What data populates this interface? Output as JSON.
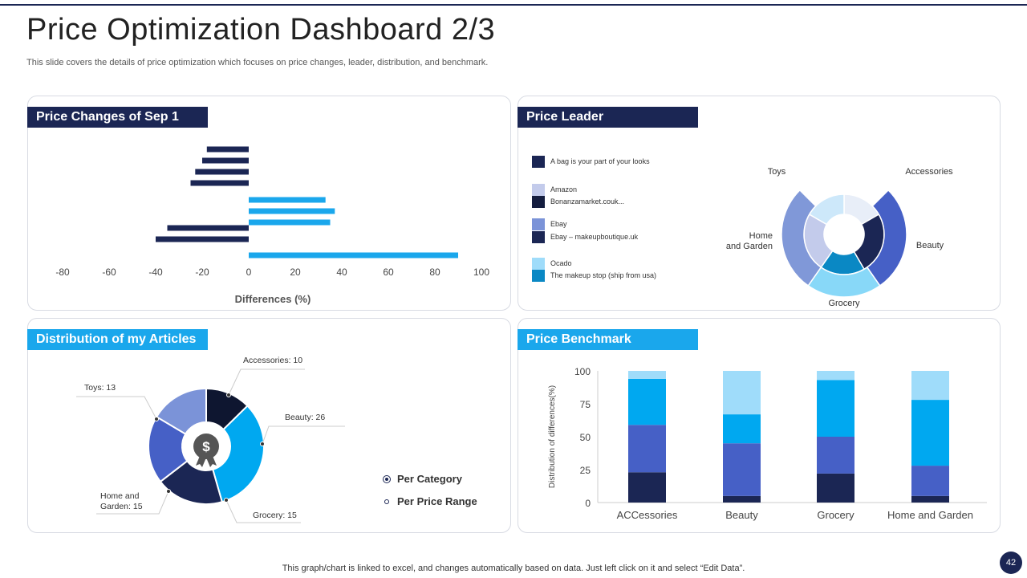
{
  "header": {
    "title": "Price Optimization Dashboard 2/3",
    "subtitle": "This slide covers the details of price optimization which focuses on price changes, leader, distribution, and benchmark."
  },
  "footer": {
    "note": "This graph/chart is linked to excel,  and changes automatically based on data. Just left click on it and select “Edit Data”.",
    "page": "42"
  },
  "panels": {
    "price_changes": "Price Changes of Sep 1",
    "price_leader": "Price Leader",
    "distribution": "Distribution of my Articles",
    "benchmark": "Price Benchmark"
  },
  "colors": {
    "navy": "#1b2654",
    "mid_blue": "#4660c6",
    "bright_blue": "#00a8f0",
    "light_blue": "#9fdcfa"
  },
  "chart_data": [
    {
      "type": "bar",
      "orientation": "horizontal",
      "xlabel": "Differences (%)",
      "xlim": [
        -80,
        100
      ],
      "xticks": [
        "-80",
        "-60",
        "-40",
        "-20",
        "0",
        "20",
        "40",
        "60",
        "80",
        "100"
      ],
      "values": [
        -18,
        -20,
        -23,
        -25,
        33,
        37,
        35,
        -35,
        -40,
        90
      ],
      "colors": {
        "negative": "#1b2654",
        "positive": "#1aa7ec"
      }
    },
    {
      "type": "sunburst",
      "categories": [
        "Accessories",
        "Beauty",
        "Grocery",
        "Home\nand Garden",
        "Toys"
      ],
      "legend": [
        {
          "label": "A bag is your part of your looks",
          "color": "#1b2654"
        },
        {
          "label": "Amazon",
          "color": "#c3cbeb"
        },
        {
          "label": "Bonanzamarket.couk...",
          "color": "#141d3f"
        },
        {
          "label": "Ebay",
          "color": "#7b93d8"
        },
        {
          "label": "Ebay – makeupboutique.uk",
          "color": "#1b2654"
        },
        {
          "label": "Ocado",
          "color": "#9fdcfa"
        },
        {
          "label": "The makeup stop (ship from usa)",
          "color": "#0a88c4"
        }
      ]
    },
    {
      "type": "pie",
      "donut": true,
      "categories": [
        "Accessories",
        "Beauty",
        "Grocery",
        "Home and Garden",
        "Toys"
      ],
      "values": [
        10,
        26,
        15,
        15,
        13
      ],
      "labels": [
        "Accessories: 10",
        "Beauty: 26",
        "Grocery: 15",
        "Home and Garden: 15",
        "Toys: 13"
      ],
      "colors": [
        "#0e1630",
        "#00a8f0",
        "#1b2654",
        "#4660c6",
        "#7b93d8"
      ],
      "legend": [
        {
          "label": "Per Category",
          "selected": true
        },
        {
          "label": "Per Price Range",
          "selected": false
        }
      ]
    },
    {
      "type": "bar",
      "stacked": true,
      "categories": [
        "ACCessories",
        "Beauty",
        "Grocery",
        "Home and Garden"
      ],
      "ylabel": "Distribution of differences(%)",
      "ylim": [
        0,
        100
      ],
      "yticks": [
        "0",
        "25",
        "50",
        "75",
        "100"
      ],
      "series": [
        {
          "values": [
            23,
            5,
            22,
            5
          ],
          "color": "#1b2654"
        },
        {
          "values": [
            36,
            40,
            28,
            23
          ],
          "color": "#4660c6"
        },
        {
          "values": [
            35,
            22,
            43,
            50
          ],
          "color": "#00a8f0"
        },
        {
          "values": [
            6,
            33,
            7,
            22
          ],
          "color": "#9fdcfa"
        }
      ]
    }
  ]
}
